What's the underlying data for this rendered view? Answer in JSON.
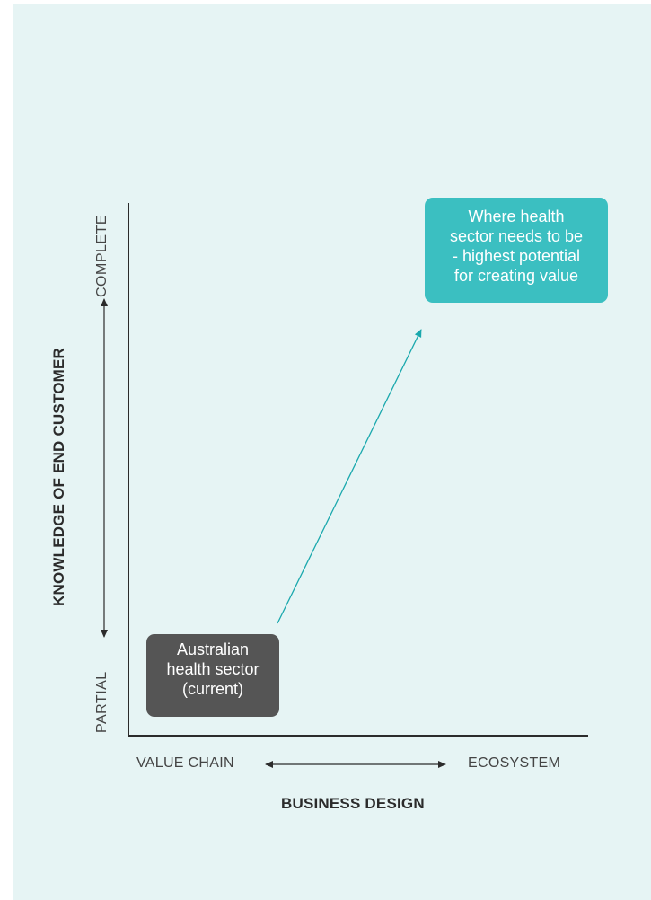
{
  "axes": {
    "y_title": "KNOWLEDGE OF END CUSTOMER",
    "y_low": "PARTIAL",
    "y_high": "COMPLETE",
    "x_title": "BUSINESS DESIGN",
    "x_low": "VALUE CHAIN",
    "x_high": "ECOSYSTEM"
  },
  "boxes": {
    "current": {
      "lines": [
        "Australian",
        "health sector",
        "(current)"
      ],
      "color": "#555555"
    },
    "target": {
      "lines": [
        "Where health",
        "sector needs to be",
        "- highest potential",
        "for creating value"
      ],
      "color": "#3bbfc1"
    }
  },
  "colors": {
    "background": "#e6f4f4",
    "axis": "#2b2b2b",
    "arrow": "#1aa8ad"
  }
}
